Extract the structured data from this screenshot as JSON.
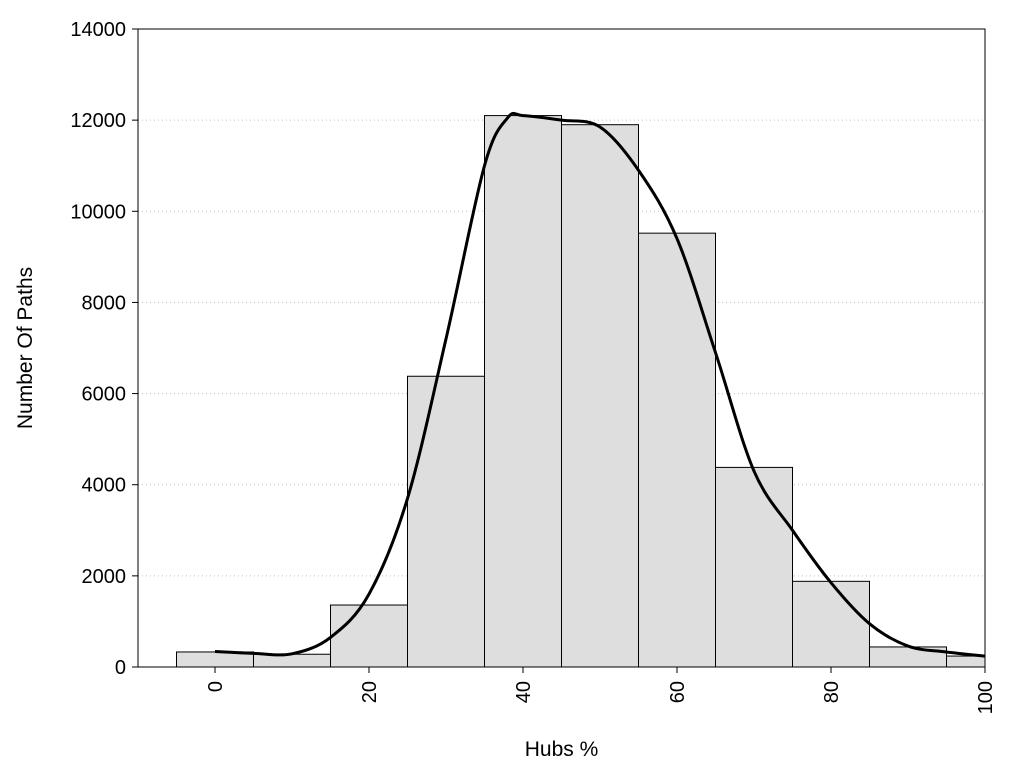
{
  "chart_data": {
    "type": "bar",
    "title": "",
    "xlabel": "Hubs %",
    "ylabel": "Number Of Paths",
    "xlim": [
      -10,
      100
    ],
    "ylim": [
      0,
      14000
    ],
    "grid": "horizontal dotted",
    "legend": "none",
    "x_ticks": [
      0,
      20,
      40,
      60,
      80,
      100
    ],
    "y_ticks": [
      0,
      2000,
      4000,
      6000,
      8000,
      10000,
      12000,
      14000
    ],
    "bin_width": 10,
    "bins": [
      {
        "center": 0,
        "value": 330
      },
      {
        "center": 10,
        "value": 280
      },
      {
        "center": 20,
        "value": 1360
      },
      {
        "center": 30,
        "value": 6380
      },
      {
        "center": 40,
        "value": 12100
      },
      {
        "center": 50,
        "value": 11900
      },
      {
        "center": 60,
        "value": 9520
      },
      {
        "center": 70,
        "value": 4380
      },
      {
        "center": 80,
        "value": 1880
      },
      {
        "center": 90,
        "value": 440
      },
      {
        "center": 100,
        "value": 240
      }
    ],
    "curve": [
      [
        0,
        340
      ],
      [
        5,
        300
      ],
      [
        10,
        290
      ],
      [
        15,
        650
      ],
      [
        20,
        1600
      ],
      [
        25,
        3700
      ],
      [
        30,
        7200
      ],
      [
        35,
        11000
      ],
      [
        38,
        12050
      ],
      [
        40,
        12100
      ],
      [
        45,
        12000
      ],
      [
        50,
        11850
      ],
      [
        55,
        10900
      ],
      [
        60,
        9400
      ],
      [
        65,
        6900
      ],
      [
        70,
        4300
      ],
      [
        75,
        3000
      ],
      [
        80,
        1850
      ],
      [
        85,
        950
      ],
      [
        90,
        460
      ],
      [
        95,
        330
      ],
      [
        100,
        240
      ]
    ],
    "colors": {
      "bar_fill": "#dedede",
      "bar_stroke": "#000000",
      "curve": "#000000",
      "grid": "#bdbdbd"
    }
  }
}
